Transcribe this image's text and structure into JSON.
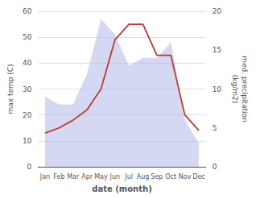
{
  "chart_data": {
    "type": "line",
    "xlabel": "date (month)",
    "ylabel": "max temp (C)",
    "y2label": "med. precipitation\n(kg/m2)",
    "categories": [
      "Jan",
      "Feb",
      "Mar",
      "Apr",
      "May",
      "Jun",
      "Jul",
      "Aug",
      "Sep",
      "Oct",
      "Nov",
      "Dec"
    ],
    "series": [
      {
        "type": "area",
        "color": "#b0b8e8",
        "axis": "y2",
        "values": [
          9,
          8,
          8,
          12,
          19,
          17,
          13,
          14,
          14,
          16,
          6,
          3
        ]
      },
      {
        "type": "line",
        "color": "#c0392b",
        "values": [
          13,
          15,
          18,
          22,
          30,
          49,
          55,
          55,
          43,
          43,
          20,
          14
        ]
      }
    ],
    "ylim": [
      0,
      60
    ],
    "yticks": [
      0,
      10,
      20,
      30,
      40,
      50,
      60
    ],
    "y2lim": [
      0,
      20
    ],
    "y2ticks": [
      0,
      5,
      10,
      15,
      20
    ],
    "grid": true
  }
}
